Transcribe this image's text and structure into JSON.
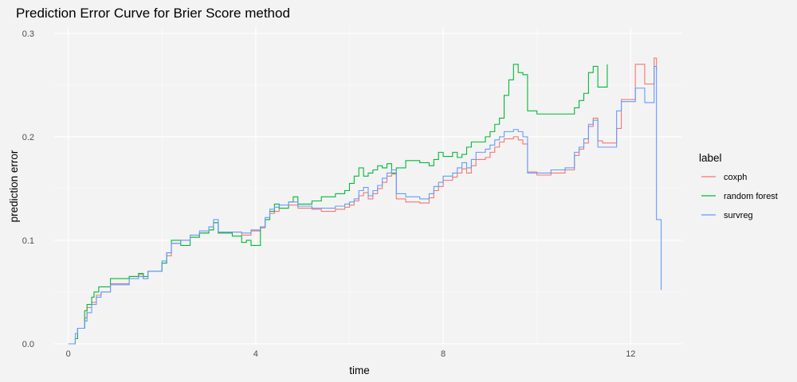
{
  "chart_data": {
    "type": "line",
    "step": true,
    "title": "Prediction Error Curve for Brier Score method",
    "xlabel": "time",
    "ylabel": "prediction error",
    "xlim": [
      -0.3,
      13.1
    ],
    "ylim": [
      -0.0,
      0.306
    ],
    "x_ticks": [
      0,
      4,
      8,
      12
    ],
    "x_tick_labels": [
      "0",
      "4",
      "8",
      "12"
    ],
    "y_ticks": [
      0.0,
      0.1,
      0.2,
      0.3
    ],
    "y_tick_labels": [
      "0.0",
      "0.1",
      "0.2",
      "0.3"
    ],
    "grid": true,
    "legend": {
      "title": "label",
      "position": "right"
    },
    "series": [
      {
        "name": "coxph",
        "color": "#f8766d",
        "points": [
          [
            0.0,
            0.0
          ],
          [
            0.15,
            0.005
          ],
          [
            0.2,
            0.015
          ],
          [
            0.35,
            0.025
          ],
          [
            0.4,
            0.035
          ],
          [
            0.5,
            0.04
          ],
          [
            0.6,
            0.047
          ],
          [
            0.7,
            0.05
          ],
          [
            0.9,
            0.058
          ],
          [
            1.3,
            0.065
          ],
          [
            1.5,
            0.067
          ],
          [
            1.6,
            0.063
          ],
          [
            1.7,
            0.07
          ],
          [
            2.0,
            0.078
          ],
          [
            2.1,
            0.085
          ],
          [
            2.2,
            0.097
          ],
          [
            2.4,
            0.1
          ],
          [
            2.6,
            0.103
          ],
          [
            2.8,
            0.107
          ],
          [
            3.0,
            0.11
          ],
          [
            3.1,
            0.117
          ],
          [
            3.2,
            0.107
          ],
          [
            3.5,
            0.108
          ],
          [
            3.7,
            0.105
          ],
          [
            3.9,
            0.109
          ],
          [
            4.1,
            0.112
          ],
          [
            4.2,
            0.12
          ],
          [
            4.3,
            0.126
          ],
          [
            4.4,
            0.128
          ],
          [
            4.5,
            0.131
          ],
          [
            4.7,
            0.134
          ],
          [
            4.9,
            0.131
          ],
          [
            5.2,
            0.13
          ],
          [
            5.4,
            0.128
          ],
          [
            5.7,
            0.13
          ],
          [
            5.9,
            0.132
          ],
          [
            6.0,
            0.134
          ],
          [
            6.1,
            0.138
          ],
          [
            6.2,
            0.143
          ],
          [
            6.3,
            0.146
          ],
          [
            6.4,
            0.14
          ],
          [
            6.5,
            0.145
          ],
          [
            6.6,
            0.15
          ],
          [
            6.7,
            0.156
          ],
          [
            6.8,
            0.162
          ],
          [
            6.9,
            0.164
          ],
          [
            7.0,
            0.14
          ],
          [
            7.2,
            0.137
          ],
          [
            7.5,
            0.136
          ],
          [
            7.7,
            0.141
          ],
          [
            7.8,
            0.148
          ],
          [
            7.9,
            0.152
          ],
          [
            8.0,
            0.158
          ],
          [
            8.2,
            0.161
          ],
          [
            8.3,
            0.165
          ],
          [
            8.4,
            0.169
          ],
          [
            8.5,
            0.165
          ],
          [
            8.6,
            0.172
          ],
          [
            8.7,
            0.178
          ],
          [
            8.9,
            0.18
          ],
          [
            9.0,
            0.185
          ],
          [
            9.1,
            0.19
          ],
          [
            9.2,
            0.195
          ],
          [
            9.3,
            0.198
          ],
          [
            9.5,
            0.2
          ],
          [
            9.6,
            0.197
          ],
          [
            9.7,
            0.193
          ],
          [
            9.8,
            0.166
          ],
          [
            10.0,
            0.163
          ],
          [
            10.3,
            0.165
          ],
          [
            10.6,
            0.168
          ],
          [
            10.8,
            0.182
          ],
          [
            10.9,
            0.188
          ],
          [
            11.0,
            0.194
          ],
          [
            11.1,
            0.21
          ],
          [
            11.2,
            0.218
          ],
          [
            11.3,
            0.196
          ],
          [
            11.4,
            0.194
          ],
          [
            11.7,
            0.208
          ],
          [
            11.8,
            0.236
          ],
          [
            12.1,
            0.27
          ],
          [
            12.3,
            0.251
          ],
          [
            12.5,
            0.276
          ],
          [
            12.55,
            0.264
          ]
        ]
      },
      {
        "name": "random forest",
        "color": "#00ba38",
        "points": [
          [
            0.0,
            0.0
          ],
          [
            0.15,
            0.005
          ],
          [
            0.2,
            0.015
          ],
          [
            0.35,
            0.032
          ],
          [
            0.4,
            0.038
          ],
          [
            0.5,
            0.045
          ],
          [
            0.55,
            0.05
          ],
          [
            0.65,
            0.055
          ],
          [
            0.9,
            0.063
          ],
          [
            1.3,
            0.065
          ],
          [
            1.5,
            0.068
          ],
          [
            1.6,
            0.065
          ],
          [
            1.7,
            0.07
          ],
          [
            2.0,
            0.078
          ],
          [
            2.1,
            0.088
          ],
          [
            2.2,
            0.1
          ],
          [
            2.4,
            0.095
          ],
          [
            2.6,
            0.103
          ],
          [
            2.8,
            0.107
          ],
          [
            3.0,
            0.11
          ],
          [
            3.1,
            0.117
          ],
          [
            3.2,
            0.107
          ],
          [
            3.5,
            0.104
          ],
          [
            3.7,
            0.098
          ],
          [
            3.8,
            0.1
          ],
          [
            3.9,
            0.095
          ],
          [
            4.1,
            0.113
          ],
          [
            4.2,
            0.12
          ],
          [
            4.3,
            0.128
          ],
          [
            4.4,
            0.135
          ],
          [
            4.5,
            0.131
          ],
          [
            4.7,
            0.137
          ],
          [
            4.8,
            0.142
          ],
          [
            4.9,
            0.135
          ],
          [
            5.2,
            0.138
          ],
          [
            5.4,
            0.142
          ],
          [
            5.7,
            0.145
          ],
          [
            5.9,
            0.148
          ],
          [
            6.0,
            0.155
          ],
          [
            6.1,
            0.162
          ],
          [
            6.2,
            0.17
          ],
          [
            6.3,
            0.162
          ],
          [
            6.4,
            0.165
          ],
          [
            6.5,
            0.168
          ],
          [
            6.6,
            0.172
          ],
          [
            6.7,
            0.17
          ],
          [
            6.8,
            0.174
          ],
          [
            6.9,
            0.165
          ],
          [
            7.0,
            0.17
          ],
          [
            7.2,
            0.177
          ],
          [
            7.5,
            0.175
          ],
          [
            7.7,
            0.172
          ],
          [
            7.8,
            0.178
          ],
          [
            7.9,
            0.185
          ],
          [
            8.0,
            0.181
          ],
          [
            8.2,
            0.185
          ],
          [
            8.3,
            0.18
          ],
          [
            8.4,
            0.183
          ],
          [
            8.5,
            0.19
          ],
          [
            8.6,
            0.195
          ],
          [
            8.7,
            0.195
          ],
          [
            8.9,
            0.2
          ],
          [
            9.0,
            0.205
          ],
          [
            9.1,
            0.212
          ],
          [
            9.2,
            0.218
          ],
          [
            9.3,
            0.24
          ],
          [
            9.4,
            0.255
          ],
          [
            9.5,
            0.27
          ],
          [
            9.6,
            0.262
          ],
          [
            9.7,
            0.26
          ],
          [
            9.8,
            0.225
          ],
          [
            10.0,
            0.222
          ],
          [
            10.3,
            0.222
          ],
          [
            10.6,
            0.222
          ],
          [
            10.8,
            0.228
          ],
          [
            10.9,
            0.235
          ],
          [
            11.0,
            0.242
          ],
          [
            11.1,
            0.262
          ],
          [
            11.2,
            0.268
          ],
          [
            11.3,
            0.248
          ],
          [
            11.5,
            0.27
          ]
        ]
      },
      {
        "name": "survreg",
        "color": "#619cff",
        "points": [
          [
            0.0,
            0.0
          ],
          [
            0.15,
            0.01
          ],
          [
            0.2,
            0.015
          ],
          [
            0.35,
            0.022
          ],
          [
            0.4,
            0.03
          ],
          [
            0.5,
            0.038
          ],
          [
            0.6,
            0.045
          ],
          [
            0.7,
            0.05
          ],
          [
            0.9,
            0.057
          ],
          [
            1.3,
            0.063
          ],
          [
            1.5,
            0.065
          ],
          [
            1.6,
            0.063
          ],
          [
            1.7,
            0.07
          ],
          [
            2.0,
            0.08
          ],
          [
            2.1,
            0.088
          ],
          [
            2.2,
            0.097
          ],
          [
            2.4,
            0.1
          ],
          [
            2.6,
            0.105
          ],
          [
            2.8,
            0.109
          ],
          [
            3.0,
            0.113
          ],
          [
            3.1,
            0.12
          ],
          [
            3.2,
            0.108
          ],
          [
            3.5,
            0.108
          ],
          [
            3.7,
            0.107
          ],
          [
            3.9,
            0.11
          ],
          [
            4.1,
            0.113
          ],
          [
            4.2,
            0.122
          ],
          [
            4.3,
            0.13
          ],
          [
            4.4,
            0.132
          ],
          [
            4.5,
            0.134
          ],
          [
            4.7,
            0.137
          ],
          [
            4.9,
            0.133
          ],
          [
            5.2,
            0.131
          ],
          [
            5.4,
            0.131
          ],
          [
            5.7,
            0.133
          ],
          [
            5.9,
            0.135
          ],
          [
            6.0,
            0.137
          ],
          [
            6.1,
            0.14
          ],
          [
            6.2,
            0.148
          ],
          [
            6.3,
            0.151
          ],
          [
            6.4,
            0.143
          ],
          [
            6.5,
            0.148
          ],
          [
            6.6,
            0.153
          ],
          [
            6.7,
            0.16
          ],
          [
            6.8,
            0.165
          ],
          [
            6.9,
            0.168
          ],
          [
            7.0,
            0.145
          ],
          [
            7.2,
            0.142
          ],
          [
            7.5,
            0.14
          ],
          [
            7.7,
            0.145
          ],
          [
            7.8,
            0.152
          ],
          [
            7.9,
            0.156
          ],
          [
            8.0,
            0.162
          ],
          [
            8.2,
            0.165
          ],
          [
            8.3,
            0.17
          ],
          [
            8.4,
            0.175
          ],
          [
            8.5,
            0.17
          ],
          [
            8.6,
            0.178
          ],
          [
            8.7,
            0.185
          ],
          [
            8.9,
            0.188
          ],
          [
            9.0,
            0.192
          ],
          [
            9.1,
            0.197
          ],
          [
            9.2,
            0.2
          ],
          [
            9.3,
            0.205
          ],
          [
            9.5,
            0.207
          ],
          [
            9.6,
            0.205
          ],
          [
            9.7,
            0.2
          ],
          [
            9.8,
            0.165
          ],
          [
            10.0,
            0.165
          ],
          [
            10.3,
            0.168
          ],
          [
            10.6,
            0.17
          ],
          [
            10.8,
            0.185
          ],
          [
            10.9,
            0.19
          ],
          [
            11.0,
            0.198
          ],
          [
            11.1,
            0.212
          ],
          [
            11.2,
            0.216
          ],
          [
            11.3,
            0.19
          ],
          [
            11.4,
            0.19
          ],
          [
            11.7,
            0.225
          ],
          [
            11.8,
            0.234
          ],
          [
            12.1,
            0.247
          ],
          [
            12.3,
            0.233
          ],
          [
            12.5,
            0.268
          ],
          [
            12.55,
            0.12
          ],
          [
            12.65,
            0.052
          ]
        ]
      }
    ]
  }
}
